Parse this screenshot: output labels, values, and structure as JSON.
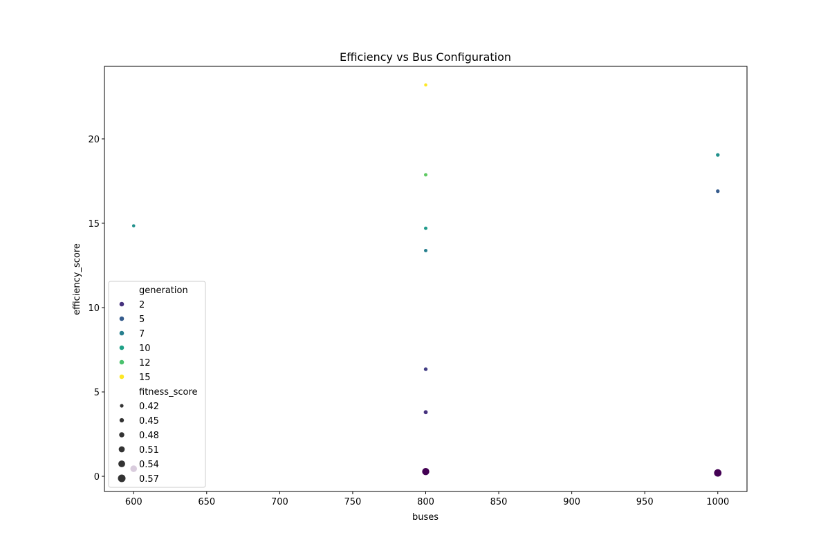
{
  "chart_data": {
    "type": "scatter",
    "title": "Efficiency vs Bus Configuration",
    "xlabel": "buses",
    "ylabel": "efficiency_score",
    "xlim": [
      580,
      1020
    ],
    "ylim": [
      -0.9,
      24.3
    ],
    "xticks": [
      600,
      650,
      700,
      750,
      800,
      850,
      900,
      950,
      1000
    ],
    "yticks": [
      0,
      5,
      10,
      15,
      20
    ],
    "grid": false,
    "legend_position": "lower-left",
    "hue": {
      "title": "generation",
      "entries": [
        {
          "label": "2",
          "color": "#46327e"
        },
        {
          "label": "5",
          "color": "#365c8d"
        },
        {
          "label": "7",
          "color": "#277f8e"
        },
        {
          "label": "10",
          "color": "#1fa187"
        },
        {
          "label": "12",
          "color": "#4ac16d"
        },
        {
          "label": "15",
          "color": "#fde725"
        }
      ]
    },
    "size": {
      "title": "fitness_score",
      "entries": [
        {
          "label": "0.42",
          "value": 0.42
        },
        {
          "label": "0.45",
          "value": 0.45
        },
        {
          "label": "0.48",
          "value": 0.48
        },
        {
          "label": "0.51",
          "value": 0.51
        },
        {
          "label": "0.54",
          "value": 0.54
        },
        {
          "label": "0.57",
          "value": 0.57
        }
      ]
    },
    "points": [
      {
        "x": 600,
        "y": 0.45,
        "generation": 1,
        "fitness_score": 0.55,
        "color": "#440154"
      },
      {
        "x": 600,
        "y": 14.85,
        "generation": 9,
        "fitness_score": 0.42,
        "color": "#21918c"
      },
      {
        "x": 800,
        "y": 0.28,
        "generation": 1,
        "fitness_score": 0.57,
        "color": "#440154"
      },
      {
        "x": 800,
        "y": 3.8,
        "generation": 2,
        "fitness_score": 0.45,
        "color": "#46327e"
      },
      {
        "x": 800,
        "y": 6.35,
        "generation": 3,
        "fitness_score": 0.44,
        "color": "#433e85"
      },
      {
        "x": 800,
        "y": 13.38,
        "generation": 7,
        "fitness_score": 0.43,
        "color": "#277f8e"
      },
      {
        "x": 800,
        "y": 14.7,
        "generation": 9,
        "fitness_score": 0.43,
        "color": "#1f9a8a"
      },
      {
        "x": 800,
        "y": 17.87,
        "generation": 12,
        "fitness_score": 0.43,
        "color": "#5ec962"
      },
      {
        "x": 800,
        "y": 23.2,
        "generation": 15,
        "fitness_score": 0.42,
        "color": "#fde725"
      },
      {
        "x": 1000,
        "y": 0.2,
        "generation": 1,
        "fitness_score": 0.58,
        "color": "#440154"
      },
      {
        "x": 1000,
        "y": 16.9,
        "generation": 5,
        "fitness_score": 0.44,
        "color": "#365c8d"
      },
      {
        "x": 1000,
        "y": 19.05,
        "generation": 9,
        "fitness_score": 0.44,
        "color": "#21918c"
      }
    ]
  }
}
